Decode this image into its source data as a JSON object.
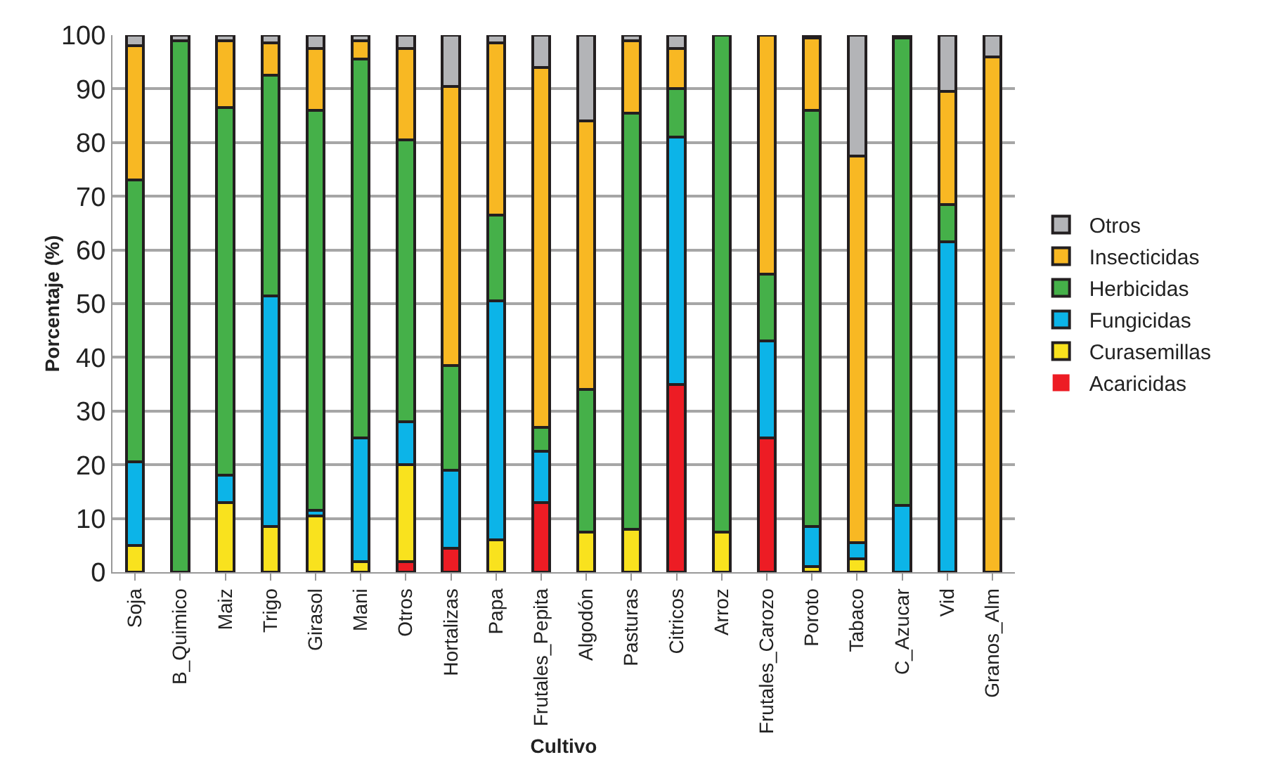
{
  "chart_data": {
    "type": "bar",
    "stacked": true,
    "xlabel": "Cultivo",
    "ylabel": "Porcentaje (%)",
    "categories": [
      "Soja",
      "B_Quimico",
      "Maiz",
      "Trigo",
      "Girasol",
      "Mani",
      "Otros",
      "Hortalizas",
      "Papa",
      "Frutales_Pepita",
      "Algodón",
      "Pasturas",
      "Citricos",
      "Arroz",
      "Frutales_Carozo",
      "Poroto",
      "Tabaco",
      "C_Azucar",
      "Vid",
      "Granos_Alm"
    ],
    "series": [
      {
        "name": "Acaricidas",
        "color": "#ed1c24",
        "values": [
          0,
          0,
          0,
          0,
          0,
          0,
          2,
          4.5,
          0,
          13,
          0,
          0,
          35,
          0,
          25,
          0,
          0,
          0,
          0,
          0
        ]
      },
      {
        "name": "Curasemillas",
        "color": "#f9e21e",
        "values": [
          5,
          0,
          13,
          8.5,
          10.5,
          2,
          18,
          0,
          6,
          0,
          7.5,
          8,
          0,
          7.5,
          0,
          1,
          2.5,
          0,
          0,
          0
        ]
      },
      {
        "name": "Fungicidas",
        "color": "#0cb4e8",
        "values": [
          15.5,
          0,
          5,
          43,
          1,
          23,
          8,
          14.5,
          44.5,
          9.5,
          0,
          0,
          46,
          0,
          18,
          7.5,
          3,
          12.5,
          61.5,
          0
        ]
      },
      {
        "name": "Herbicidas",
        "color": "#45b049",
        "values": [
          52.5,
          99,
          68.5,
          41,
          74.5,
          70.5,
          52.5,
          19.5,
          16,
          4.5,
          26.5,
          77.5,
          9,
          92.5,
          12.5,
          77.5,
          0,
          87,
          7,
          0
        ]
      },
      {
        "name": "Insecticidas",
        "color": "#f8b823",
        "values": [
          25,
          0,
          12.5,
          6,
          11.5,
          3.5,
          17,
          52,
          32,
          67,
          50,
          13.5,
          7.5,
          0,
          44.5,
          13.5,
          72,
          0.5,
          21,
          96
        ]
      },
      {
        "name": "Otros",
        "color": "#b3b4b7",
        "values": [
          2,
          1,
          1,
          1.5,
          2.5,
          1,
          2.5,
          9.5,
          1.5,
          6,
          16,
          1,
          2.5,
          0,
          0,
          0.5,
          22.5,
          0,
          10.5,
          4
        ]
      }
    ],
    "ylim": [
      0,
      100
    ],
    "yticks": [
      0,
      10,
      20,
      30,
      40,
      50,
      60,
      70,
      80,
      90,
      100
    ],
    "grid": "y",
    "legend": "right"
  }
}
